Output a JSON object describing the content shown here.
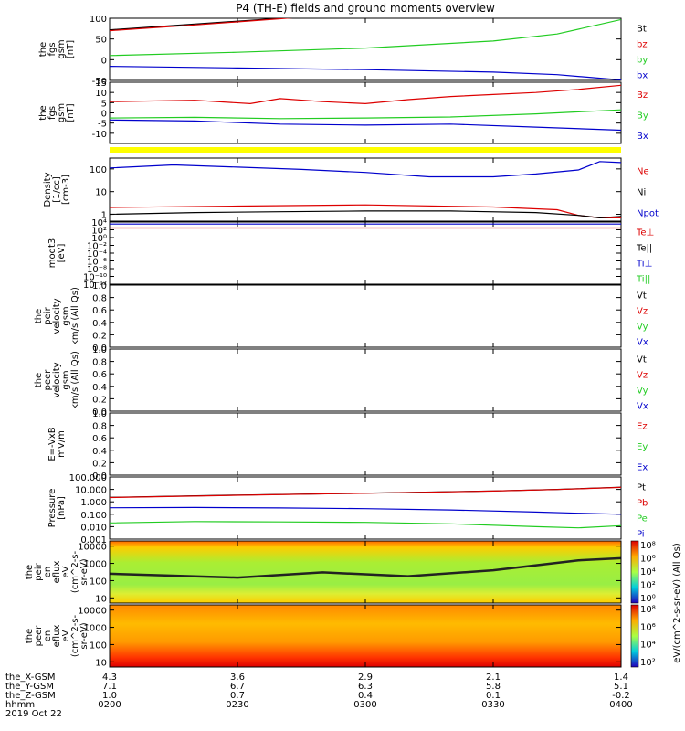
{
  "title": "P4 (TH-E) fields and ground moments overview",
  "colors": {
    "black": "#000000",
    "red": "#dd0000",
    "green": "#22cc22",
    "blue": "#0000cc",
    "yellow": "#ffff00"
  },
  "chart_data": {
    "type": "line",
    "x_time_labels": [
      "0200",
      "0230",
      "0300",
      "0330",
      "0400"
    ],
    "x_time_range": [
      "0200",
      "0400"
    ],
    "date_label": "2019 Oct 22",
    "orbit_rows": [
      {
        "label": "the_X-GSM",
        "values": [
          "4.3",
          "3.6",
          "2.9",
          "2.1",
          "1.4"
        ]
      },
      {
        "label": "the_Y-GSM",
        "values": [
          "7.1",
          "6.7",
          "6.3",
          "5.8",
          "5.1"
        ]
      },
      {
        "label": "the_Z-GSM",
        "values": [
          "1.0",
          "0.7",
          "0.4",
          "0.1",
          "-0.2"
        ]
      },
      {
        "label": "hhmm",
        "values": [
          "0200",
          "0230",
          "0300",
          "0330",
          "0400"
        ]
      }
    ],
    "panels": [
      {
        "id": "fgs-gsm-1",
        "ylabel_lines": [
          "the",
          "fgs",
          "gsm",
          "[nT]"
        ],
        "ylim": [
          -50,
          100
        ],
        "log": false,
        "ticks": [
          {
            "v": 100,
            "t": "100"
          },
          {
            "v": 50,
            "t": "50"
          },
          {
            "v": 0,
            "t": "0"
          },
          {
            "v": -50,
            "t": "-50"
          }
        ],
        "legend": [
          {
            "t": "Bt",
            "c": "black"
          },
          {
            "t": "bz",
            "c": "red"
          },
          {
            "t": "by",
            "c": "green"
          },
          {
            "t": "bx",
            "c": "blue"
          }
        ],
        "series": [
          {
            "name": "Bt",
            "color": "black",
            "x": [
              0,
              20,
              40,
              50
            ],
            "y": [
              72,
              86,
              100,
              108
            ]
          },
          {
            "name": "bz",
            "color": "red",
            "x": [
              0,
              20,
              40,
              50
            ],
            "y": [
              70,
              84,
              99,
              107
            ]
          },
          {
            "name": "by",
            "color": "green",
            "x": [
              0,
              30,
              60,
              90,
              105,
              120
            ],
            "y": [
              10,
              18,
              28,
              45,
              62,
              97
            ]
          },
          {
            "name": "bx",
            "color": "blue",
            "x": [
              0,
              30,
              60,
              90,
              105,
              120
            ],
            "y": [
              -16,
              -20,
              -24,
              -30,
              -36,
              -49
            ]
          }
        ]
      },
      {
        "id": "fgs-gsm-2",
        "ylabel_lines": [
          "the",
          "fgs",
          "gsm",
          "[nT]"
        ],
        "ylim": [
          -15,
          15
        ],
        "log": false,
        "ticks": [
          {
            "v": 15,
            "t": "15"
          },
          {
            "v": 10,
            "t": "10"
          },
          {
            "v": 5,
            "t": "5"
          },
          {
            "v": 0,
            "t": "0"
          },
          {
            "v": -5,
            "t": "-5"
          },
          {
            "v": -10,
            "t": "-10"
          }
        ],
        "legend": [
          {
            "t": "Bz",
            "c": "red"
          },
          {
            "t": "By",
            "c": "green"
          },
          {
            "t": "Bx",
            "c": "blue"
          }
        ],
        "series": [
          {
            "name": "Bz",
            "color": "red",
            "x": [
              0,
              20,
              33,
              40,
              50,
              60,
              70,
              80,
              90,
              100,
              110,
              120
            ],
            "y": [
              5.5,
              6.2,
              4.5,
              7.0,
              5.5,
              4.5,
              6.5,
              8.0,
              9.0,
              10.0,
              11.5,
              13.5
            ]
          },
          {
            "name": "By",
            "color": "green",
            "x": [
              0,
              20,
              40,
              60,
              80,
              100,
              120
            ],
            "y": [
              -2.5,
              -2.2,
              -2.8,
              -2.5,
              -2.0,
              -0.5,
              1.5
            ]
          },
          {
            "name": "Bx",
            "color": "blue",
            "x": [
              0,
              20,
              40,
              60,
              80,
              100,
              120
            ],
            "y": [
              -3.5,
              -4.0,
              -5.5,
              -6.0,
              -5.5,
              -7.0,
              -8.5
            ]
          }
        ]
      },
      {
        "id": "density",
        "ylabel_lines": [
          "Density",
          "[1/cc]",
          "[cm-3]"
        ],
        "ylim": [
          0.5,
          300
        ],
        "log": true,
        "ticks": [
          {
            "v": 100,
            "t": "100"
          },
          {
            "v": 10,
            "t": "10"
          },
          {
            "v": 1,
            "t": "1"
          }
        ],
        "legend": [
          {
            "t": "Ne",
            "c": "red"
          },
          {
            "t": "Ni",
            "c": "black"
          },
          {
            "t": "Npot",
            "c": "blue"
          }
        ],
        "series": [
          {
            "name": "Npot",
            "color": "blue",
            "x": [
              0,
              15,
              30,
              45,
              60,
              75,
              90,
              100,
              110,
              115,
              120
            ],
            "y": [
              110,
              150,
              120,
              95,
              70,
              45,
              45,
              60,
              90,
              210,
              190
            ]
          },
          {
            "name": "Ne",
            "color": "red",
            "x": [
              0,
              30,
              60,
              90,
              105,
              110,
              115,
              120
            ],
            "y": [
              2.0,
              2.3,
              2.6,
              2.1,
              1.6,
              0.9,
              0.7,
              0.7
            ]
          },
          {
            "name": "Ni",
            "color": "black",
            "x": [
              0,
              20,
              40,
              60,
              80,
              100,
              110,
              115,
              120
            ],
            "y": [
              1.0,
              1.2,
              1.3,
              1.4,
              1.4,
              1.2,
              0.9,
              0.7,
              0.8
            ]
          }
        ]
      },
      {
        "id": "moqt3",
        "ylabel_lines": [
          "moqt3",
          "[eV]"
        ],
        "ylim": [
          1e-12,
          10000
        ],
        "log": true,
        "ticks": [
          {
            "v": 10000,
            "t": "10⁴"
          },
          {
            "v": 100,
            "t": "10²"
          },
          {
            "v": 1,
            "t": "10⁰"
          },
          {
            "v": 0.01,
            "t": "10⁻²"
          },
          {
            "v": 0.0001,
            "t": "10⁻⁴"
          },
          {
            "v": 1e-06,
            "t": "10⁻⁶"
          },
          {
            "v": 1e-08,
            "t": "10⁻⁸"
          },
          {
            "v": 1e-10,
            "t": "10⁻¹⁰"
          },
          {
            "v": 1e-12,
            "t": "10⁻¹²"
          }
        ],
        "legend": [
          {
            "t": "Te⊥",
            "c": "red"
          },
          {
            "t": "Te||",
            "c": "black"
          },
          {
            "t": "Ti⊥",
            "c": "blue"
          },
          {
            "t": "Ti||",
            "c": "green"
          }
        ],
        "series": [
          {
            "name": "Ti",
            "color": "blue",
            "x": [
              0,
              60,
              120
            ],
            "y": [
              3000,
              3000,
              3000
            ]
          },
          {
            "name": "Te",
            "color": "red",
            "x": [
              0,
              60,
              120
            ],
            "y": [
              300,
              300,
              300
            ]
          }
        ]
      },
      {
        "id": "peir-velocity",
        "ylabel_lines": [
          "the",
          "peir",
          "velocity",
          "gsm",
          "km/s (All Qs)"
        ],
        "ylim": [
          0,
          1
        ],
        "log": false,
        "ticks": [
          {
            "v": 1.0,
            "t": "1.0"
          },
          {
            "v": 0.8,
            "t": "0.8"
          },
          {
            "v": 0.6,
            "t": "0.6"
          },
          {
            "v": 0.4,
            "t": "0.4"
          },
          {
            "v": 0.2,
            "t": "0.2"
          },
          {
            "v": 0.0,
            "t": "0.0"
          }
        ],
        "legend": [
          {
            "t": "Vt",
            "c": "black"
          },
          {
            "t": "Vz",
            "c": "red"
          },
          {
            "t": "Vy",
            "c": "green"
          },
          {
            "t": "Vx",
            "c": "blue"
          }
        ],
        "series": []
      },
      {
        "id": "peer-velocity",
        "ylabel_lines": [
          "the",
          "peer",
          "velocity",
          "gsm",
          "km/s (All Qs)"
        ],
        "ylim": [
          0,
          1
        ],
        "log": false,
        "ticks": [
          {
            "v": 1.0,
            "t": "1.0"
          },
          {
            "v": 0.8,
            "t": "0.8"
          },
          {
            "v": 0.6,
            "t": "0.6"
          },
          {
            "v": 0.4,
            "t": "0.4"
          },
          {
            "v": 0.2,
            "t": "0.2"
          },
          {
            "v": 0.0,
            "t": "0.0"
          }
        ],
        "legend": [
          {
            "t": "Vt",
            "c": "black"
          },
          {
            "t": "Vz",
            "c": "red"
          },
          {
            "t": "Vy",
            "c": "green"
          },
          {
            "t": "Vx",
            "c": "blue"
          }
        ],
        "series": []
      },
      {
        "id": "efield",
        "ylabel_lines": [
          "E=-VxB",
          "mV/m"
        ],
        "ylim": [
          0,
          1
        ],
        "log": false,
        "ticks": [
          {
            "v": 1.0,
            "t": "1.0"
          },
          {
            "v": 0.8,
            "t": "0.8"
          },
          {
            "v": 0.6,
            "t": "0.6"
          },
          {
            "v": 0.4,
            "t": "0.4"
          },
          {
            "v": 0.2,
            "t": "0.2"
          },
          {
            "v": 0.0,
            "t": "0.0"
          }
        ],
        "legend": [
          {
            "t": "Ez",
            "c": "red"
          },
          {
            "t": "Ey",
            "c": "green"
          },
          {
            "t": "Ex",
            "c": "blue"
          }
        ],
        "series": []
      },
      {
        "id": "pressure",
        "ylabel_lines": [
          "Pressure",
          "[nPa]"
        ],
        "ylim": [
          0.001,
          100
        ],
        "log": true,
        "ticks": [
          {
            "v": 100,
            "t": "100.000"
          },
          {
            "v": 10,
            "t": "10.000"
          },
          {
            "v": 1,
            "t": "1.000"
          },
          {
            "v": 0.1,
            "t": "0.100"
          },
          {
            "v": 0.01,
            "t": "0.010"
          },
          {
            "v": 0.001,
            "t": "0.001"
          }
        ],
        "legend": [
          {
            "t": "Pt",
            "c": "black"
          },
          {
            "t": "Pb",
            "c": "red"
          },
          {
            "t": "Pe",
            "c": "green"
          },
          {
            "t": "Pi",
            "c": "blue"
          }
        ],
        "series": [
          {
            "name": "Pt",
            "color": "black",
            "x": [
              0,
              30,
              60,
              90,
              105,
              120
            ],
            "y": [
              2.3,
              3.5,
              5.0,
              7.5,
              10,
              15
            ]
          },
          {
            "name": "Pb",
            "color": "red",
            "x": [
              0,
              30,
              60,
              90,
              105,
              120
            ],
            "y": [
              2.2,
              3.4,
              4.9,
              7.4,
              9.8,
              14.5
            ]
          },
          {
            "name": "Pi",
            "color": "blue",
            "x": [
              0,
              20,
              40,
              60,
              80,
              100,
              110,
              120
            ],
            "y": [
              0.33,
              0.35,
              0.32,
              0.28,
              0.22,
              0.15,
              0.12,
              0.1
            ]
          },
          {
            "name": "Pe",
            "color": "green",
            "x": [
              0,
              20,
              40,
              60,
              80,
              100,
              110,
              120
            ],
            "y": [
              0.02,
              0.026,
              0.024,
              0.022,
              0.017,
              0.01,
              0.008,
              0.012
            ]
          }
        ]
      },
      {
        "id": "peir-eflux",
        "type": "heatmap",
        "ylabel_lines": [
          "the",
          "peir",
          "en",
          "eflux",
          "eV",
          "(cm^2-s-",
          "sr-eV)"
        ],
        "ylim": [
          5,
          20000
        ],
        "log": true,
        "ticks": [
          {
            "v": 10000,
            "t": "10000"
          },
          {
            "v": 1000,
            "t": "1000"
          },
          {
            "v": 100,
            "t": "100"
          },
          {
            "v": 10,
            "t": "10"
          }
        ],
        "colorbar": {
          "range": [
            100,
            100000000
          ],
          "ticks": [
            "10⁸",
            "10⁶",
            "10⁴",
            "10²",
            "10⁰"
          ],
          "label": "eV/(cm^2-s-sr-eV) (All Qs)"
        }
      },
      {
        "id": "peer-eflux",
        "type": "heatmap",
        "ylabel_lines": [
          "the",
          "peer",
          "en",
          "eflux",
          "eV",
          "(cm^2-s-",
          "sr-eV)"
        ],
        "ylim": [
          5,
          20000
        ],
        "log": true,
        "ticks": [
          {
            "v": 10000,
            "t": "10000"
          },
          {
            "v": 1000,
            "t": "1000"
          },
          {
            "v": 100,
            "t": "100"
          },
          {
            "v": 10,
            "t": "10"
          }
        ],
        "colorbar": {
          "range": [
            100,
            100000000
          ],
          "ticks": [
            "10⁸",
            "10⁶",
            "10⁴",
            "10²"
          ],
          "label": "eV/(cm^2-s-sr-eV) (All Qs)"
        }
      }
    ],
    "colorbar_shared_label": "eV/(cm^2-s-sr-eV) (All Qs)"
  }
}
